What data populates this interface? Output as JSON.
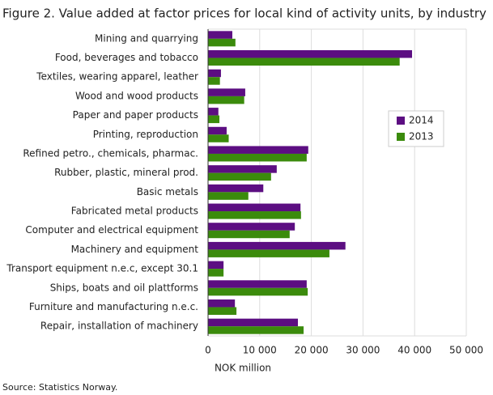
{
  "chart_data": {
    "type": "hbar",
    "title": "Figure 2. Value added at factor prices for local kind of activity units, by industry",
    "categories": [
      "Mining and quarrying",
      "Food, beverages and tobacco",
      "Textiles, wearing apparel, leather",
      "Wood and wood products",
      "Paper and paper products",
      "Printing, reproduction",
      "Refined petro., chemicals, pharmac.",
      "Rubber, plastic, mineral prod.",
      "Basic metals",
      "Fabricated metal products",
      "Computer and electrical equipment",
      "Machinery and equipment",
      "Transport equipment n.e.c, except 30.1",
      "Ships, boats and oil plattforms",
      "Furniture and manufacturing n.e.c.",
      "Repair, installation of machinery"
    ],
    "series": [
      {
        "name": "2014",
        "color": "#5c0e82",
        "values": [
          4700,
          39500,
          2500,
          7200,
          2000,
          3600,
          19400,
          13300,
          10700,
          17900,
          16800,
          26600,
          3000,
          19100,
          5200,
          17400
        ]
      },
      {
        "name": "2013",
        "color": "#3b8b0c",
        "values": [
          5300,
          37100,
          2300,
          7000,
          2200,
          4000,
          19100,
          12200,
          7800,
          18000,
          15800,
          23500,
          3000,
          19300,
          5500,
          18500
        ]
      }
    ],
    "xlabel": "NOK million",
    "xlim": [
      0,
      50000
    ],
    "xticks": [
      0,
      {
        "value": 10000,
        "label": "10 000"
      },
      {
        "value": 20000,
        "label": "20 000"
      },
      {
        "value": 30000,
        "label": "30 000"
      },
      {
        "value": 40000,
        "label": "40 000"
      },
      {
        "value": 50000,
        "label": "50 000"
      }
    ],
    "grid": true,
    "legend": "upper right",
    "source": "Source: Statistics Norway."
  }
}
